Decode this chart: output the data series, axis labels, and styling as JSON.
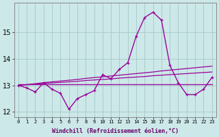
{
  "xlabel": "Windchill (Refroidissement éolien,°C)",
  "hours": [
    0,
    1,
    2,
    3,
    4,
    5,
    6,
    7,
    8,
    9,
    10,
    11,
    12,
    13,
    14,
    15,
    16,
    17,
    18,
    19,
    20,
    21,
    22,
    23
  ],
  "line_main": [
    13.0,
    12.9,
    12.75,
    13.1,
    12.85,
    12.7,
    12.1,
    12.5,
    12.65,
    12.8,
    13.4,
    13.25,
    13.6,
    13.85,
    14.85,
    15.55,
    15.75,
    15.45,
    13.75,
    13.1,
    12.65,
    12.65,
    12.85,
    13.3
  ],
  "line_flat": [
    13.05,
    13.05,
    13.05,
    13.05,
    13.05,
    13.05,
    13.05,
    13.05,
    13.05,
    13.05,
    13.05,
    13.05,
    13.05,
    13.05,
    13.05,
    13.05,
    13.05,
    13.05,
    13.05,
    13.05,
    13.05,
    13.05,
    13.05,
    13.05
  ],
  "line_rise1": [
    13.0,
    13.02,
    13.04,
    13.07,
    13.09,
    13.11,
    13.13,
    13.15,
    13.18,
    13.2,
    13.22,
    13.24,
    13.27,
    13.29,
    13.31,
    13.33,
    13.36,
    13.38,
    13.4,
    13.42,
    13.44,
    13.46,
    13.48,
    13.5
  ],
  "line_rise2": [
    13.0,
    13.03,
    13.06,
    13.1,
    13.13,
    13.16,
    13.19,
    13.22,
    13.26,
    13.29,
    13.32,
    13.35,
    13.38,
    13.41,
    13.44,
    13.47,
    13.5,
    13.54,
    13.57,
    13.6,
    13.63,
    13.66,
    13.69,
    13.72
  ],
  "ylim": [
    11.8,
    16.1
  ],
  "yticks": [
    12,
    13,
    14,
    15
  ],
  "line_color": "#990099",
  "bg_color": "#cce8e8",
  "grid_color": "#aacccc"
}
